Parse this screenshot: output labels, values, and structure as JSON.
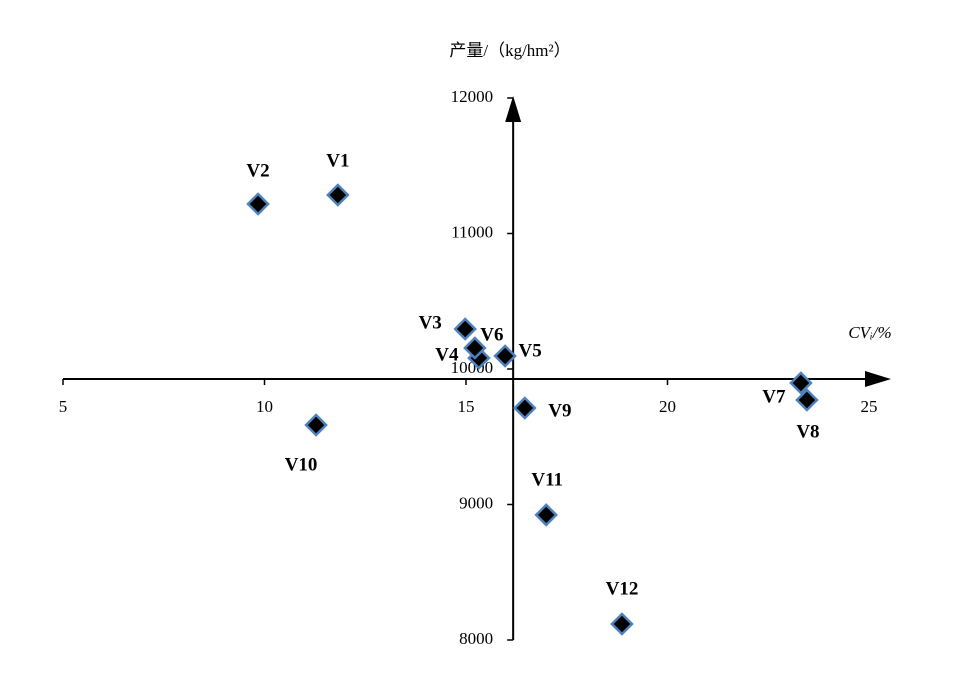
{
  "chart_data": {
    "type": "scatter",
    "x_label": "CVᵢ/%",
    "y_label": "产量/（kg/hm²）",
    "labels": [
      "V1",
      "V2",
      "V3",
      "V4",
      "V5",
      "V6",
      "V7",
      "V8",
      "V9",
      "V10",
      "V11",
      "V12"
    ],
    "x": [
      11.82,
      9.84,
      14.98,
      15.32,
      15.97,
      15.22,
      23.31,
      23.46,
      16.46,
      11.28,
      16.99,
      18.87
    ],
    "values": [
      11284,
      11218,
      10295,
      10081,
      10096,
      10155,
      9897,
      9771,
      9712,
      9587,
      8923,
      8118
    ],
    "color": "#000000",
    "edge_color": "#4f81bd",
    "xlim": [
      5,
      25
    ],
    "xticks": [
      5,
      10,
      15,
      20,
      25
    ],
    "ylim": [
      8000,
      12000
    ],
    "yticks": [
      8000,
      9000,
      10000,
      11000,
      12000
    ],
    "x_axis_at": 9926,
    "y_axis_at": 16.17,
    "grid": false
  }
}
